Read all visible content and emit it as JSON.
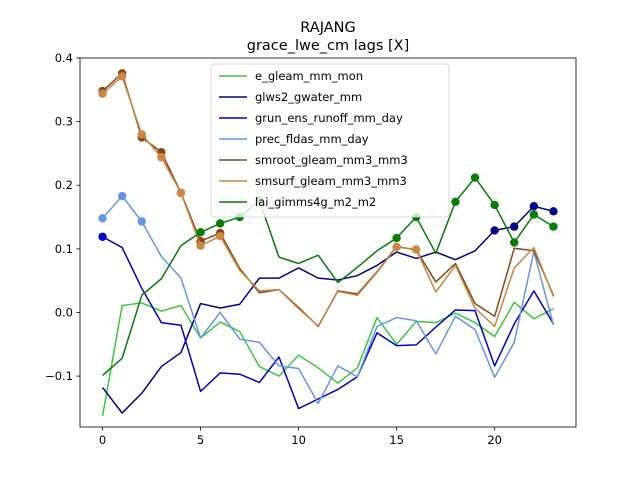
{
  "chart_data": {
    "type": "line",
    "title": "RAJANG",
    "subtitle": "grace_lwe_cm lags [X]",
    "xlabel": "",
    "ylabel": "",
    "xlim": [
      -1.15,
      24.15
    ],
    "ylim": [
      -0.18,
      0.4
    ],
    "xticks": [
      0,
      5,
      10,
      15,
      20
    ],
    "yticks": [
      -0.1,
      0.0,
      0.1,
      0.2,
      0.3,
      0.4
    ],
    "xtick_labels": [
      "0",
      "5",
      "10",
      "15",
      "20"
    ],
    "ytick_labels": [
      "−0.1",
      "0.0",
      "0.1",
      "0.2",
      "0.3",
      "0.4"
    ],
    "grid": false,
    "legend_position": "top-center",
    "x": [
      0,
      1,
      2,
      3,
      4,
      5,
      6,
      7,
      8,
      9,
      10,
      11,
      12,
      13,
      14,
      15,
      16,
      17,
      18,
      19,
      20,
      21,
      22,
      23
    ],
    "series": [
      {
        "name": "e_gleam_mm_mon",
        "color": "#32cd32",
        "values": [
          -0.163,
          0.011,
          0.015,
          0.002,
          0.011,
          -0.04,
          -0.015,
          -0.03,
          -0.085,
          -0.1,
          -0.067,
          -0.087,
          -0.111,
          -0.087,
          -0.008,
          -0.05,
          -0.014,
          -0.016,
          -0.001,
          -0.016,
          -0.038,
          0.016,
          -0.01,
          0.006
        ],
        "markers": []
      },
      {
        "name": "glws2_gwater_mm",
        "color": "#00008b",
        "values": [
          -0.118,
          -0.158,
          -0.127,
          -0.085,
          -0.063,
          0.014,
          0.007,
          0.013,
          0.054,
          0.054,
          0.07,
          0.054,
          0.051,
          0.058,
          0.074,
          0.095,
          0.085,
          0.095,
          0.083,
          0.097,
          0.129,
          0.135,
          0.167,
          0.159
        ],
        "markers": [
          20,
          21,
          22,
          23
        ]
      },
      {
        "name": "grun_ens_runoff_mm_day",
        "color": "#0000cd",
        "values": [
          0.119,
          0.102,
          0.038,
          -0.016,
          -0.02,
          -0.124,
          -0.095,
          -0.097,
          -0.11,
          -0.07,
          -0.151,
          -0.136,
          -0.121,
          -0.101,
          -0.032,
          -0.052,
          -0.051,
          -0.023,
          0.004,
          0.003,
          -0.084,
          -0.018,
          0.034,
          -0.018
        ],
        "markers": [
          0
        ]
      },
      {
        "name": "prec_fldas_mm_day",
        "color": "#6495ed",
        "values": [
          0.148,
          0.183,
          0.143,
          0.088,
          0.054,
          -0.04,
          0.0,
          -0.042,
          -0.047,
          -0.084,
          -0.088,
          -0.143,
          -0.084,
          -0.101,
          -0.022,
          -0.008,
          -0.013,
          -0.065,
          -0.006,
          -0.027,
          -0.102,
          -0.047,
          0.096,
          -0.02
        ],
        "markers": [
          0,
          1,
          2
        ]
      },
      {
        "name": "smroot_gleam_mm3_mm3",
        "color": "#8b4513",
        "values": [
          0.348,
          0.376,
          0.275,
          0.252,
          0.188,
          0.112,
          0.125,
          0.069,
          0.031,
          0.036,
          0.008,
          -0.022,
          0.034,
          0.029,
          0.064,
          0.104,
          0.098,
          0.048,
          0.077,
          0.014,
          -0.006,
          0.101,
          0.097,
          0.027
        ],
        "markers": [
          0,
          1,
          2,
          3,
          4,
          5,
          6
        ]
      },
      {
        "name": "smsurf_gleam_mm3_mm3",
        "color": "#cd853f",
        "values": [
          0.344,
          0.371,
          0.28,
          0.244,
          0.188,
          0.105,
          0.12,
          0.066,
          0.034,
          0.036,
          0.006,
          -0.021,
          0.033,
          0.027,
          0.063,
          0.103,
          0.099,
          0.032,
          0.074,
          0.007,
          -0.022,
          0.07,
          0.102,
          0.025
        ],
        "markers": [
          0,
          1,
          2,
          3,
          4,
          5,
          6,
          15,
          16
        ]
      },
      {
        "name": "lai_gimms4g_m2_m2",
        "color": "#008000",
        "values": [
          -0.099,
          -0.072,
          0.027,
          0.053,
          0.105,
          0.126,
          0.14,
          0.15,
          0.176,
          0.087,
          0.077,
          0.09,
          0.047,
          0.071,
          0.097,
          0.117,
          0.15,
          0.093,
          0.174,
          0.212,
          0.169,
          0.11,
          0.154,
          0.135
        ],
        "markers": [
          5,
          6,
          7,
          8,
          15,
          16,
          18,
          19,
          20,
          21,
          22,
          23
        ]
      }
    ]
  }
}
